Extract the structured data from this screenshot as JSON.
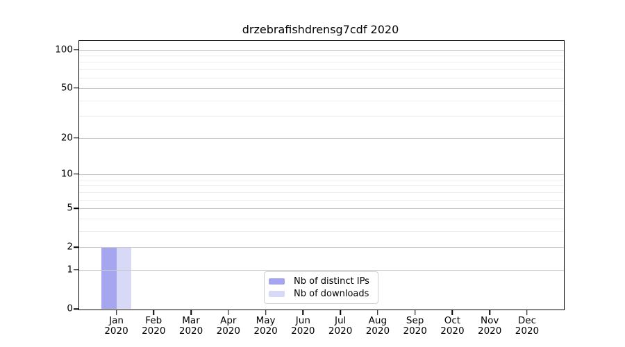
{
  "title": "drzebrafishdrensg7cdf 2020",
  "chart_data": {
    "type": "bar",
    "title": "drzebrafishdrensg7cdf 2020",
    "x_categories": [
      "Jan",
      "Feb",
      "Mar",
      "Apr",
      "May",
      "Jun",
      "Jul",
      "Aug",
      "Sep",
      "Oct",
      "Nov",
      "Dec"
    ],
    "x_year": "2020",
    "series": [
      {
        "name": "Nb of distinct IPs",
        "color": "#a5a5f0",
        "values": [
          2,
          0,
          0,
          0,
          0,
          0,
          0,
          0,
          0,
          0,
          0,
          0
        ]
      },
      {
        "name": "Nb of downloads",
        "color": "#d8d8f7",
        "values": [
          2,
          0,
          0,
          0,
          0,
          0,
          0,
          0,
          0,
          0,
          0,
          0
        ]
      }
    ],
    "y_scale": "log1p",
    "ylim": [
      0,
      117
    ],
    "y_ticks": [
      0,
      1,
      2,
      5,
      10,
      20,
      50,
      100
    ],
    "y_minor_ticks": [
      3,
      4,
      6,
      7,
      8,
      9,
      30,
      40,
      60,
      70,
      80,
      90
    ],
    "grid": "horizontal major+minor",
    "legend_position": "lower-center",
    "colors": {
      "axis": "#000000",
      "major_grid": "#c9c9c9",
      "minor_grid": "#ededed",
      "background": "#ffffff"
    }
  }
}
